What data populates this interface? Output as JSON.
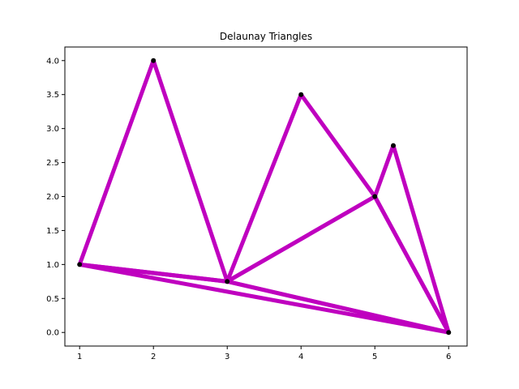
{
  "chart_data": {
    "type": "line",
    "title": "Delaunay Triangles",
    "xlabel": "",
    "ylabel": "",
    "xlim": [
      0.8,
      6.25
    ],
    "ylim": [
      -0.2,
      4.2
    ],
    "x_ticks": [
      "1",
      "2",
      "3",
      "4",
      "5",
      "6"
    ],
    "y_ticks": [
      "0.0",
      "0.5",
      "1.0",
      "1.5",
      "2.0",
      "2.5",
      "3.0",
      "3.5",
      "4.0"
    ],
    "grid": false,
    "points": [
      {
        "x": 1,
        "y": 1
      },
      {
        "x": 2,
        "y": 4
      },
      {
        "x": 3,
        "y": 0.75
      },
      {
        "x": 4,
        "y": 3.5
      },
      {
        "x": 5,
        "y": 2
      },
      {
        "x": 5.25,
        "y": 2.75
      },
      {
        "x": 6,
        "y": 0
      }
    ],
    "triangles": [
      [
        0,
        1,
        2
      ],
      [
        0,
        2,
        6
      ],
      [
        2,
        3,
        4
      ],
      [
        2,
        4,
        6
      ],
      [
        4,
        5,
        6
      ]
    ],
    "edge_color": "#bf00bf",
    "point_color": "#000000"
  }
}
